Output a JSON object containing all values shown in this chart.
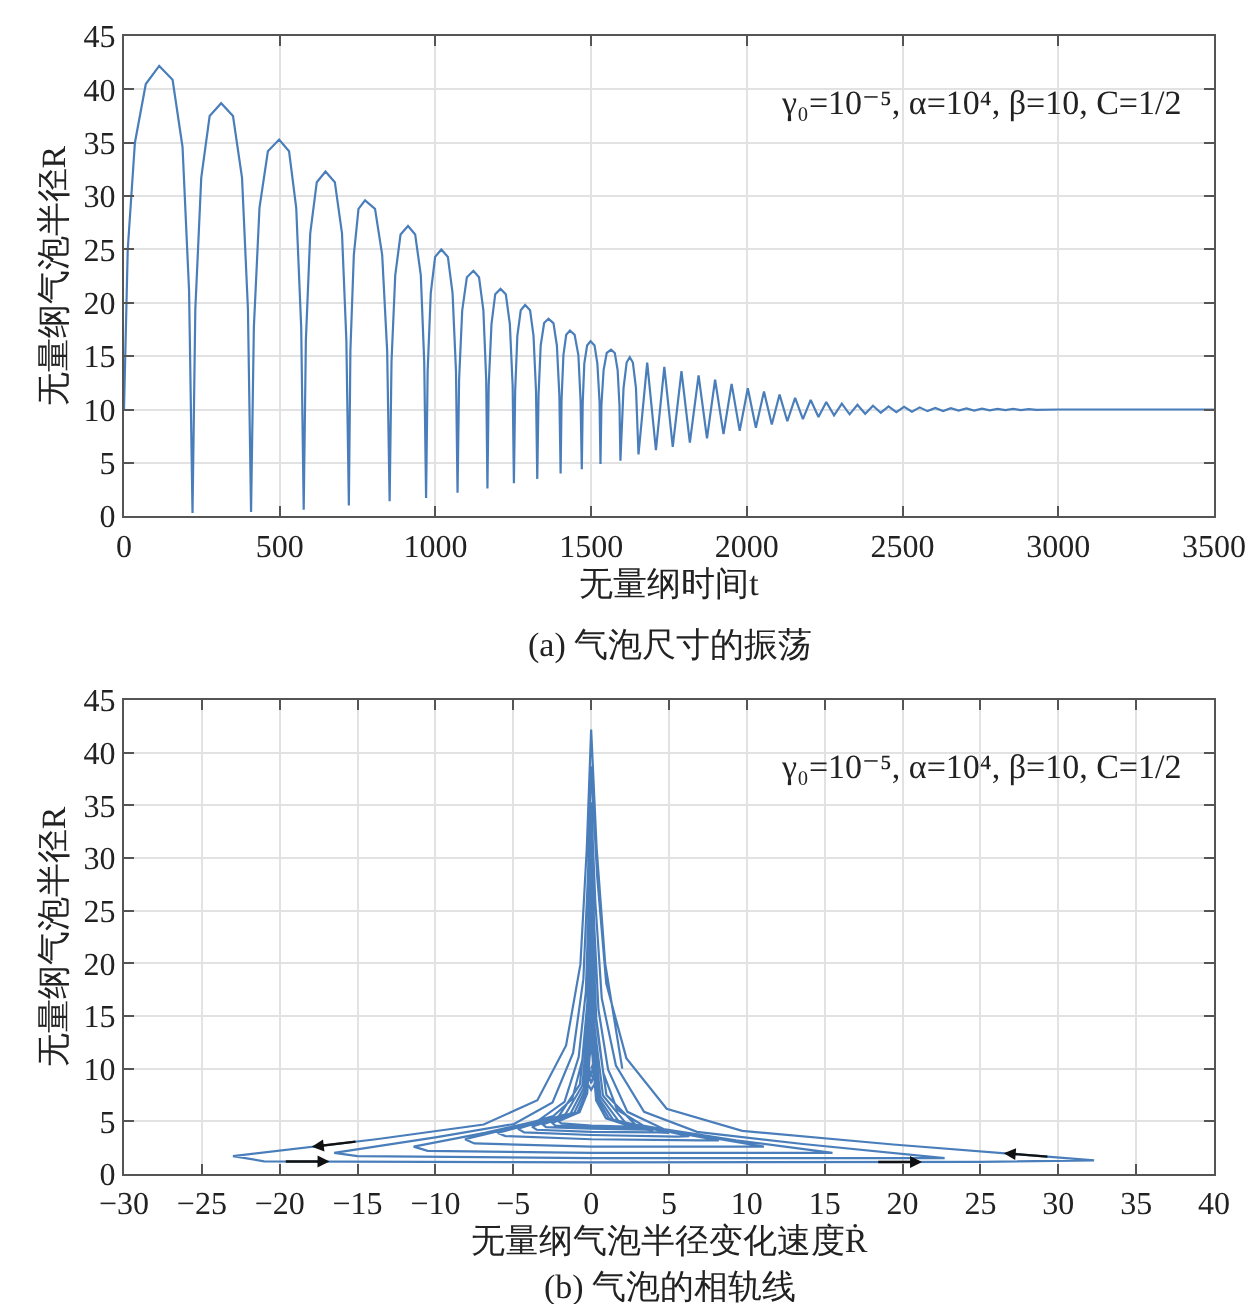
{
  "chart_data": [
    {
      "type": "line",
      "xlabel": "无量纲时间t",
      "ylabel": "无量纲气泡半径R",
      "color": "#4a7ebb",
      "grid": true,
      "annotations": [
        "γ₀=10⁻⁵, α=10⁴, β=10, C=1/2",
        "(a) 气泡尺寸的振荡"
      ],
      "xlim": [
        0,
        3500
      ],
      "xticks": [
        0,
        500,
        1000,
        1500,
        2000,
        2500,
        3000,
        3500
      ],
      "ylim": [
        0,
        45
      ],
      "yticks": [
        0,
        5,
        10,
        15,
        20,
        25,
        30,
        35,
        40,
        45
      ],
      "x": [
        0,
        12,
        35,
        70,
        113,
        156,
        188,
        209,
        220,
        229,
        248,
        275,
        312,
        350,
        379,
        398,
        408,
        417,
        435,
        462,
        498,
        530,
        553,
        569,
        577,
        584,
        598,
        619,
        647,
        677,
        700,
        714,
        722,
        727,
        738,
        753,
        774,
        806,
        829,
        845,
        853,
        859,
        871,
        888,
        912,
        935,
        953,
        964,
        970,
        975,
        985,
        999,
        1019,
        1040,
        1055,
        1066,
        1071,
        1076,
        1086,
        1101,
        1122,
        1140,
        1154,
        1163,
        1167,
        1171,
        1180,
        1192,
        1209,
        1226,
        1239,
        1248,
        1252,
        1256,
        1263,
        1274,
        1288,
        1304,
        1315,
        1323,
        1327,
        1331,
        1338,
        1349,
        1363,
        1379,
        1390,
        1398,
        1402,
        1405,
        1411,
        1420,
        1432,
        1447,
        1459,
        1466,
        1470,
        1473,
        1478,
        1487,
        1498,
        1511,
        1520,
        1527,
        1530,
        1533,
        1540,
        1550,
        1564,
        1576,
        1585,
        1591,
        1594,
        1604,
        1614,
        1624,
        1634,
        1644,
        1652,
        1680,
        1708,
        1735,
        1762,
        1790,
        1817,
        1845,
        1872,
        1898,
        1925,
        1951,
        1977,
        2003,
        2029,
        2055,
        2080,
        2105,
        2130,
        2155,
        2180,
        2205,
        2230,
        2255,
        2280,
        2305,
        2330,
        2355,
        2380,
        2405,
        2430,
        2455,
        2480,
        2505,
        2530,
        2555,
        2580,
        2605,
        2630,
        2655,
        2680,
        2705,
        2730,
        2755,
        2780,
        2805,
        2830,
        2855,
        2880,
        2905,
        2930,
        3000,
        3500
      ],
      "values": [
        10,
        25,
        35,
        40.5,
        42.2,
        40.9,
        34.6,
        21.1,
        0.3,
        19.4,
        31.7,
        37.5,
        38.7,
        37.5,
        31.7,
        19.4,
        0.4,
        17.7,
        28.9,
        34.2,
        35.3,
        34.2,
        28.9,
        17.7,
        0.6,
        16.5,
        26.5,
        31.3,
        32.3,
        31.3,
        26.5,
        16.5,
        1.0,
        15.5,
        24.5,
        28.8,
        29.6,
        28.8,
        24.5,
        15.5,
        1.4,
        14.5,
        22.6,
        26.4,
        27.2,
        26.4,
        22.6,
        14.5,
        1.7,
        13.6,
        20.9,
        24.3,
        25,
        24.3,
        20.9,
        13.6,
        2.2,
        12.8,
        19.3,
        22.4,
        23,
        22.4,
        19.3,
        12.8,
        2.6,
        12.2,
        18,
        20.8,
        21.3,
        20.8,
        18,
        12.2,
        3.1,
        11.7,
        16.9,
        19.3,
        19.8,
        19.3,
        16.9,
        11.7,
        3.5,
        11.3,
        16,
        18.1,
        18.5,
        18.1,
        16,
        11.3,
        4.0,
        10.9,
        15.1,
        17,
        17.4,
        17,
        15.1,
        10.9,
        4.4,
        10.7,
        14.3,
        16,
        16.4,
        16,
        14.3,
        10.7,
        4.9,
        10.4,
        13.7,
        15.3,
        15.6,
        15.3,
        13.7,
        10.4,
        5.2,
        12,
        14.4,
        14.9,
        14.4,
        12,
        5.8,
        14.4,
        6.2,
        14.0,
        6.5,
        13.6,
        6.9,
        13.2,
        7.3,
        12.8,
        7.7,
        12.4,
        8.0,
        12.0,
        8.3,
        11.7,
        8.6,
        11.4,
        8.9,
        11.1,
        9.1,
        10.9,
        9.3,
        10.7,
        9.45,
        10.55,
        9.55,
        10.45,
        9.6,
        10.35,
        9.7,
        10.3,
        9.75,
        10.25,
        9.8,
        10.2,
        9.85,
        10.15,
        9.85,
        10.12,
        9.9,
        10.1,
        9.9,
        10.08,
        9.92,
        10.06,
        9.94,
        10.05,
        9.95,
        10.04,
        9.96,
        10,
        10
      ]
    },
    {
      "type": "line",
      "xlabel": "无量纲气泡半径变化速度Ṙ",
      "ylabel": "无量纲气泡半径R",
      "color": "#4a7ebb",
      "grid": true,
      "annotations": [
        "γ₀=10⁻⁵, α=10⁴, β=10, C=1/2",
        "(b) 气泡的相轨线"
      ],
      "xlim": [
        -30,
        40
      ],
      "xticks": [
        {
          "value": -30,
          "label": "−30"
        },
        {
          "value": -25,
          "label": "−25"
        },
        {
          "value": -20,
          "label": "−20"
        },
        {
          "value": -15,
          "label": "−15"
        },
        {
          "value": -10,
          "label": "−10"
        },
        {
          "value": -5,
          "label": "−5"
        },
        0,
        5,
        10,
        15,
        20,
        25,
        30,
        35,
        40
      ],
      "ylim": [
        0,
        45
      ],
      "yticks": [
        0,
        5,
        10,
        15,
        20,
        25,
        30,
        35,
        40,
        45
      ],
      "x": [
        2,
        0.9,
        0.35,
        0,
        -0.28,
        -0.69,
        -1.61,
        -3.45,
        -6.9,
        -13.8,
        -23,
        -21,
        0,
        25,
        32.3,
        19.4,
        9.7,
        4.85,
        2.26,
        0.97,
        0.39,
        0,
        -0.2,
        -0.5,
        -1.16,
        -2.48,
        -4.95,
        -9.9,
        -16.5,
        -15,
        0,
        18,
        22.7,
        13.6,
        6.8,
        3.4,
        1.59,
        0.68,
        0.27,
        0,
        -0.14,
        -0.34,
        -0.8,
        -1.71,
        -3.42,
        -6.84,
        -11.4,
        -10.5,
        0,
        13,
        15.5,
        9.3,
        4.65,
        2.33,
        1.09,
        0.47,
        0.19,
        0,
        -0.1,
        -0.24,
        -0.57,
        -1.22,
        -2.43,
        -4.86,
        -8.1,
        -7.5,
        0,
        9.5,
        11.1,
        6.66,
        3.33,
        1.67,
        0.78,
        0.33,
        0.13,
        0,
        -0.18,
        -0.72,
        -2.1,
        -6,
        -5.5,
        0,
        7,
        8.2,
        2.87,
        0.98,
        0.25,
        0,
        -0.14,
        -0.56,
        -1.65,
        -4.7,
        -4.3,
        0,
        5.5,
        6.3,
        2.2,
        0.76,
        0.19,
        0,
        -0.11,
        -0.46,
        -1.33,
        -3.8,
        -3.5,
        0,
        4.3,
        5,
        1.75,
        0.6,
        0.15,
        0,
        -0.09,
        -0.37,
        -1.09,
        -3.1,
        -2.9,
        0,
        3.5,
        4,
        1.4,
        0.48,
        0.12,
        0,
        -0.08,
        -0.3,
        -0.88,
        -2.5,
        -2.3,
        0,
        2.9,
        3.3,
        1.16,
        0.4,
        0.1,
        0,
        -0.06,
        -0.25,
        -0.74,
        -2.1,
        -1.9,
        0,
        2.4,
        2.7,
        0.95,
        0.32,
        0.08,
        0,
        -0.05,
        -0.4,
        0,
        0.4,
        0.1,
        0,
        -0.1,
        -0.3,
        0,
        0.3,
        0,
        -0.2,
        0,
        0.15,
        0
      ],
      "values": [
        10,
        20,
        31,
        42.2,
        30.9,
        19.9,
        12.2,
        7.0,
        4.7,
        3.3,
        1.7,
        1.2,
        1.1,
        1.15,
        1.3,
        2.8,
        4.1,
        6.2,
        11.0,
        18.1,
        28.2,
        38.7,
        28.4,
        18.5,
        11.5,
        6.8,
        4.75,
        3.5,
        2.0,
        1.7,
        1.5,
        1.5,
        1.5,
        2.85,
        4.0,
        5.9,
        10.3,
        16.7,
        25.8,
        35.3,
        26.1,
        17.3,
        11.1,
        6.85,
        5.05,
        3.9,
        2.6,
        2.2,
        2.0,
        2.0,
        2.0,
        3.2,
        4.27,
        5.9,
        9.9,
        15.6,
        23.8,
        32.3,
        24.2,
        16.35,
        10.8,
        7.1,
        5.5,
        4.46,
        3.3,
        2.9,
        2.6,
        2.6,
        2.6,
        3.7,
        4.6,
        6.1,
        9.6,
        14.75,
        22.0,
        29.6,
        16.75,
        8.5,
        5.44,
        3.9,
        3.6,
        3.3,
        3.2,
        3.2,
        4.64,
        7.5,
        15.2,
        27.2,
        15.75,
        8.4,
        5.67,
        4.3,
        3.95,
        3.7,
        3.55,
        3.6,
        4.88,
        7.45,
        14.3,
        25,
        14.75,
        8.2,
        5.73,
        4.5,
        4.2,
        4.0,
        3.95,
        3.9,
        5.05,
        7.34,
        13.45,
        23,
        13.85,
        8.0,
        5.8,
        4.7,
        4.45,
        4.3,
        4.2,
        4.15,
        5.18,
        7.24,
        12.7,
        21.3,
        13.05,
        7.8,
        5.84,
        4.85,
        4.6,
        4.45,
        4.35,
        4.3,
        5.23,
        7.09,
        12.05,
        19.8,
        12.4,
        7.66,
        5.87,
        5.0,
        4.8,
        4.6,
        4.5,
        4.45,
        5.29,
        6.98,
        11.45,
        18.5,
        11.5,
        9,
        8,
        9,
        12,
        15,
        12,
        10,
        8.6,
        10,
        13,
        10.5,
        9.2,
        10.5,
        10
      ]
    }
  ]
}
